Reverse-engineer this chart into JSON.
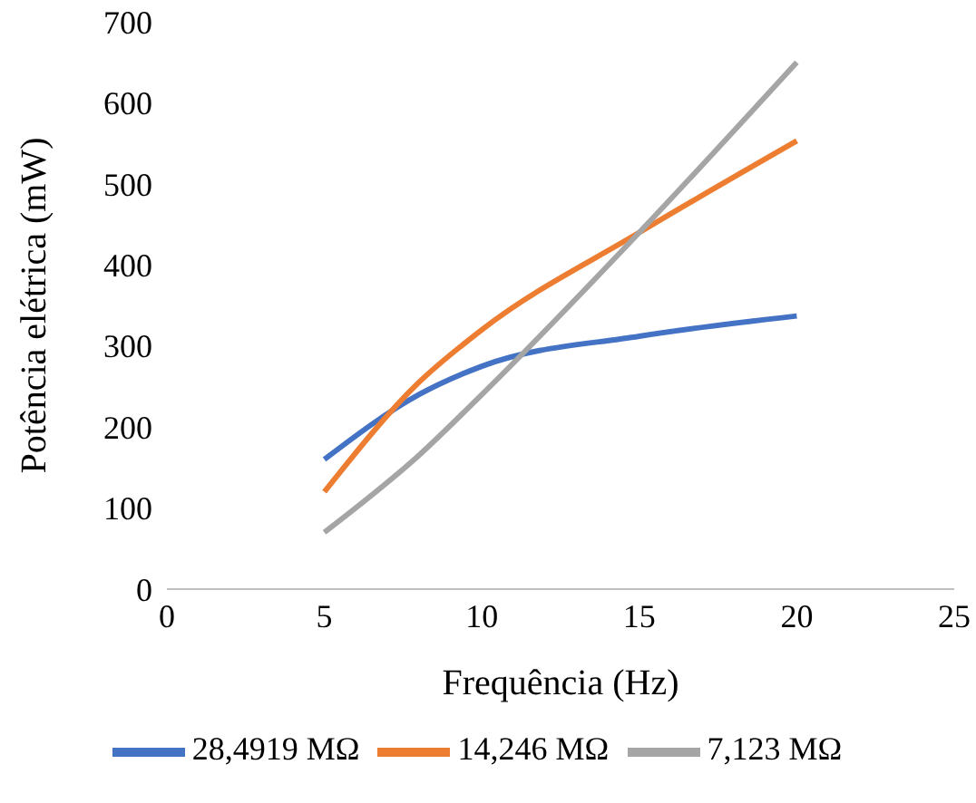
{
  "chart_data": {
    "type": "line",
    "xlabel": "Frequência (Hz)",
    "ylabel": "Potência elétrica (mW)",
    "x": [
      5,
      8,
      10,
      15,
      20
    ],
    "series": [
      {
        "name": "28,4919 MΩ",
        "color": "#4472c4",
        "values": [
          160,
          240,
          275,
          312,
          337
        ]
      },
      {
        "name": "14,246 MΩ",
        "color": "#ed7d31",
        "values": [
          120,
          255,
          320,
          440,
          553
        ]
      },
      {
        "name": "7,123 MΩ",
        "color": "#a5a5a5",
        "values": [
          70,
          165,
          240,
          440,
          650
        ]
      }
    ],
    "xlim": [
      0,
      25
    ],
    "xticks": [
      0,
      5,
      10,
      15,
      20,
      25
    ],
    "ylim": [
      0,
      700
    ],
    "yticks": [
      0,
      100,
      200,
      300,
      400,
      500,
      600,
      700
    ],
    "grid": false,
    "legend": "bottom",
    "marker": "none",
    "line_style": "solid"
  }
}
